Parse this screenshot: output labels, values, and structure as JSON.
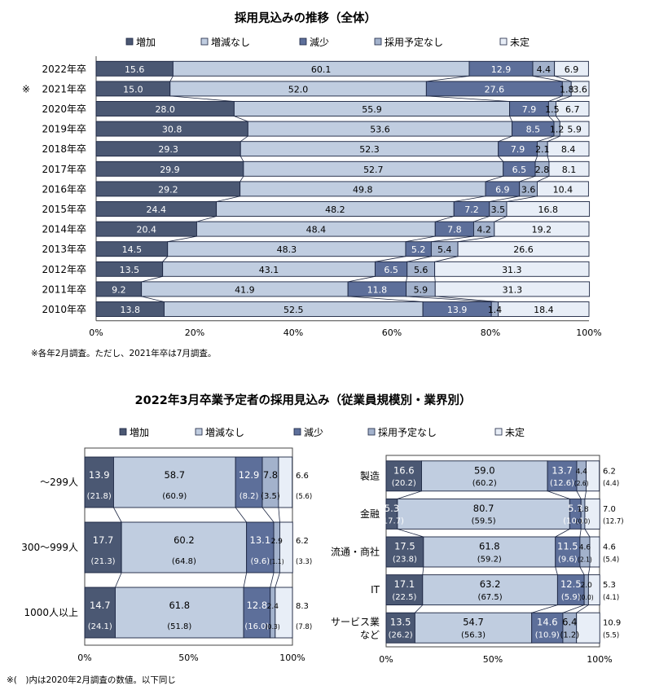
{
  "colors": {
    "increase": "#4b5873",
    "unchanged": "#c0cde0",
    "decrease": "#5d6f9a",
    "no_plan": "#a3b2cc",
    "undecided": "#e8eef7",
    "stroke": "#1a2440"
  },
  "legend": [
    "増加",
    "増減なし",
    "減少",
    "採用予定なし",
    "未定"
  ],
  "chart_data": [
    {
      "type": "bar",
      "orientation": "horizontal-stacked-100",
      "title": "採用見込みの推移（全体）",
      "categories": [
        "2022年卒",
        "2021年卒",
        "2020年卒",
        "2019年卒",
        "2018年卒",
        "2017年卒",
        "2016年卒",
        "2015年卒",
        "2014年卒",
        "2013年卒",
        "2012年卒",
        "2011年卒",
        "2010年卒"
      ],
      "category_marks": [
        "",
        "※",
        "",
        "",
        "",
        "",
        "",
        "",
        "",
        "",
        "",
        "",
        ""
      ],
      "series": [
        {
          "name": "増加",
          "values": [
            15.6,
            15.0,
            28.0,
            30.8,
            29.3,
            29.9,
            29.2,
            24.4,
            20.4,
            14.5,
            13.5,
            9.2,
            13.8
          ]
        },
        {
          "name": "増減なし",
          "values": [
            60.1,
            52.0,
            55.9,
            53.6,
            52.3,
            52.7,
            49.8,
            48.2,
            48.4,
            48.3,
            43.1,
            41.9,
            52.5
          ]
        },
        {
          "name": "減少",
          "values": [
            12.9,
            27.6,
            7.9,
            8.5,
            7.9,
            6.5,
            6.9,
            7.2,
            7.8,
            5.2,
            6.5,
            11.8,
            13.9
          ]
        },
        {
          "name": "採用予定なし",
          "values": [
            4.4,
            1.8,
            1.5,
            1.2,
            2.1,
            2.8,
            3.6,
            3.5,
            4.2,
            5.4,
            5.6,
            5.9,
            1.4
          ]
        },
        {
          "name": "未定",
          "values": [
            6.9,
            3.6,
            6.7,
            5.9,
            8.4,
            8.1,
            10.4,
            16.8,
            19.2,
            26.6,
            31.3,
            31.3,
            18.4
          ]
        }
      ],
      "x_ticks": [
        "0%",
        "20%",
        "40%",
        "60%",
        "80%",
        "100%"
      ],
      "xlim": [
        0,
        100
      ],
      "legend_position": "top",
      "note": "※各年2月調査。ただし、2021年卒は7月調査。"
    },
    {
      "type": "bar",
      "orientation": "horizontal-stacked-100",
      "title": "2022年3月卒業予定者の採用見込み（従業員規模別・業界別）",
      "panels": [
        {
          "id": "by_size",
          "categories": [
            "～299人",
            "300～999人",
            "1000人以上"
          ],
          "series": [
            {
              "name": "増加",
              "values": [
                13.9,
                17.7,
                14.7
              ],
              "prev": [
                21.8,
                21.3,
                24.1
              ]
            },
            {
              "name": "増減なし",
              "values": [
                58.7,
                60.2,
                61.8
              ],
              "prev": [
                60.9,
                64.8,
                51.8
              ]
            },
            {
              "name": "減少",
              "values": [
                12.9,
                13.1,
                12.8
              ],
              "prev": [
                8.2,
                9.6,
                16.0
              ]
            },
            {
              "name": "採用予定なし",
              "values": [
                7.8,
                2.9,
                2.4
              ],
              "prev": [
                3.5,
                1.1,
                0.3
              ]
            },
            {
              "name": "未定",
              "values": [
                6.6,
                6.2,
                8.3
              ],
              "prev": [
                5.6,
                3.3,
                7.8
              ]
            }
          ],
          "x_ticks": [
            "0%",
            "50%",
            "100%"
          ]
        },
        {
          "id": "by_industry",
          "categories": [
            "製造",
            "金融",
            "流通・商社",
            "IT",
            "サービス業など"
          ],
          "category_lines": [
            [
              "製造"
            ],
            [
              "金融"
            ],
            [
              "流通・商社"
            ],
            [
              "IT"
            ],
            [
              "サービス業",
              "など"
            ]
          ],
          "series": [
            {
              "name": "増加",
              "values": [
                16.6,
                5.3,
                17.5,
                17.1,
                13.5
              ],
              "prev": [
                20.2,
                17.7,
                23.8,
                22.5,
                26.2
              ]
            },
            {
              "name": "増減なし",
              "values": [
                59.0,
                80.7,
                61.8,
                63.2,
                54.7
              ],
              "prev": [
                60.2,
                59.5,
                59.2,
                67.5,
                56.3
              ]
            },
            {
              "name": "減少",
              "values": [
                13.7,
                5.3,
                11.5,
                12.5,
                14.6
              ],
              "prev": [
                12.6,
                10.1,
                9.6,
                5.9,
                10.9
              ]
            },
            {
              "name": "採用予定なし",
              "values": [
                4.4,
                1.8,
                4.6,
                2.0,
                6.4
              ],
              "prev": [
                2.6,
                0.0,
                2.1,
                0.0,
                1.2
              ]
            },
            {
              "name": "未定",
              "values": [
                6.2,
                7.0,
                4.6,
                5.3,
                10.9
              ],
              "prev": [
                4.4,
                12.7,
                5.4,
                4.1,
                5.5
              ]
            }
          ],
          "x_ticks": [
            "0%",
            "50%",
            "100%"
          ]
        }
      ],
      "legend_position": "top",
      "note": "※(　)内は2020年2月調査の数値。以下同じ"
    }
  ]
}
